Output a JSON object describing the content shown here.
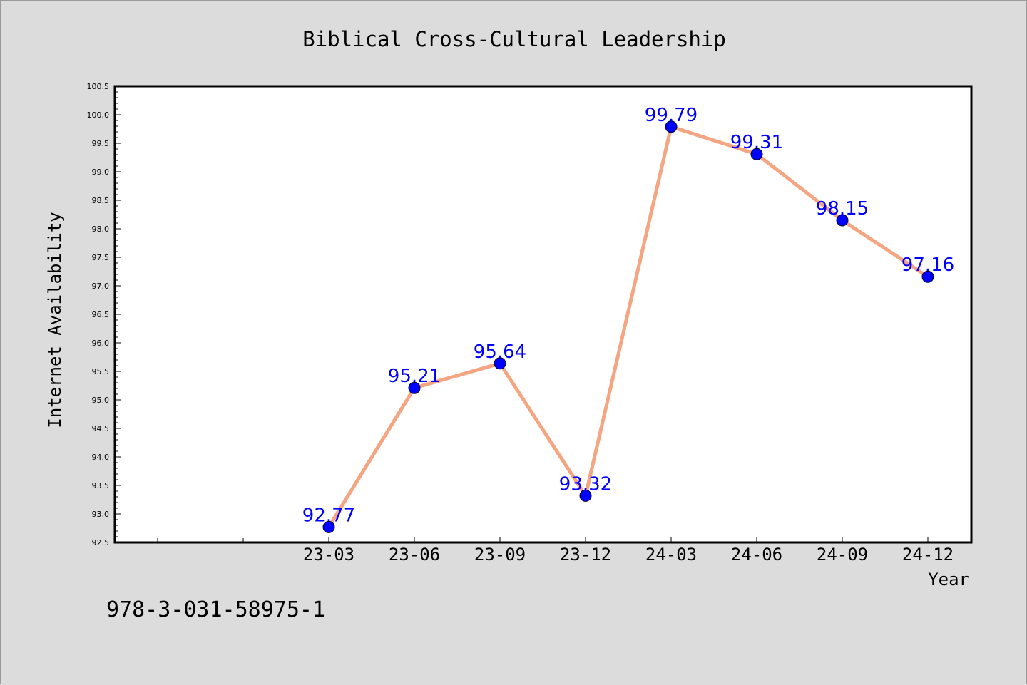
{
  "colors": {
    "background": "#dcdcdc",
    "plot_background": "#ffffff",
    "line": "#f4a582",
    "marker": "#0000ff",
    "data_label": "#0000ff",
    "text": "#000000"
  },
  "footer": {
    "isbn": "978-3-031-58975-1"
  },
  "chart_data": {
    "type": "line",
    "title": "Biblical Cross-Cultural Leadership",
    "xlabel": "Year",
    "ylabel": "Internet Availability",
    "categories": [
      "23-03",
      "23-06",
      "23-09",
      "23-12",
      "24-03",
      "24-06",
      "24-09",
      "24-12"
    ],
    "series": [
      {
        "values": [
          92.77,
          95.21,
          95.64,
          93.32,
          99.79,
          99.31,
          98.15,
          97.16
        ],
        "color": "#f4a582",
        "marker_color": "#0000ff"
      }
    ],
    "data_labels": [
      "92.77",
      "95.21",
      "95.64",
      "93.32",
      "99.79",
      "99.31",
      "98.15",
      "97.16"
    ],
    "ylim": [
      92.5,
      100.5
    ],
    "yticks": [
      "92.5",
      "93.0",
      "93.5",
      "94.0",
      "94.5",
      "95.0",
      "95.5",
      "96.0",
      "96.5",
      "97.0",
      "97.5",
      "98.0",
      "98.5",
      "99.0",
      "99.5",
      "100.0",
      "100.5"
    ],
    "grid": false,
    "legend": "none"
  }
}
